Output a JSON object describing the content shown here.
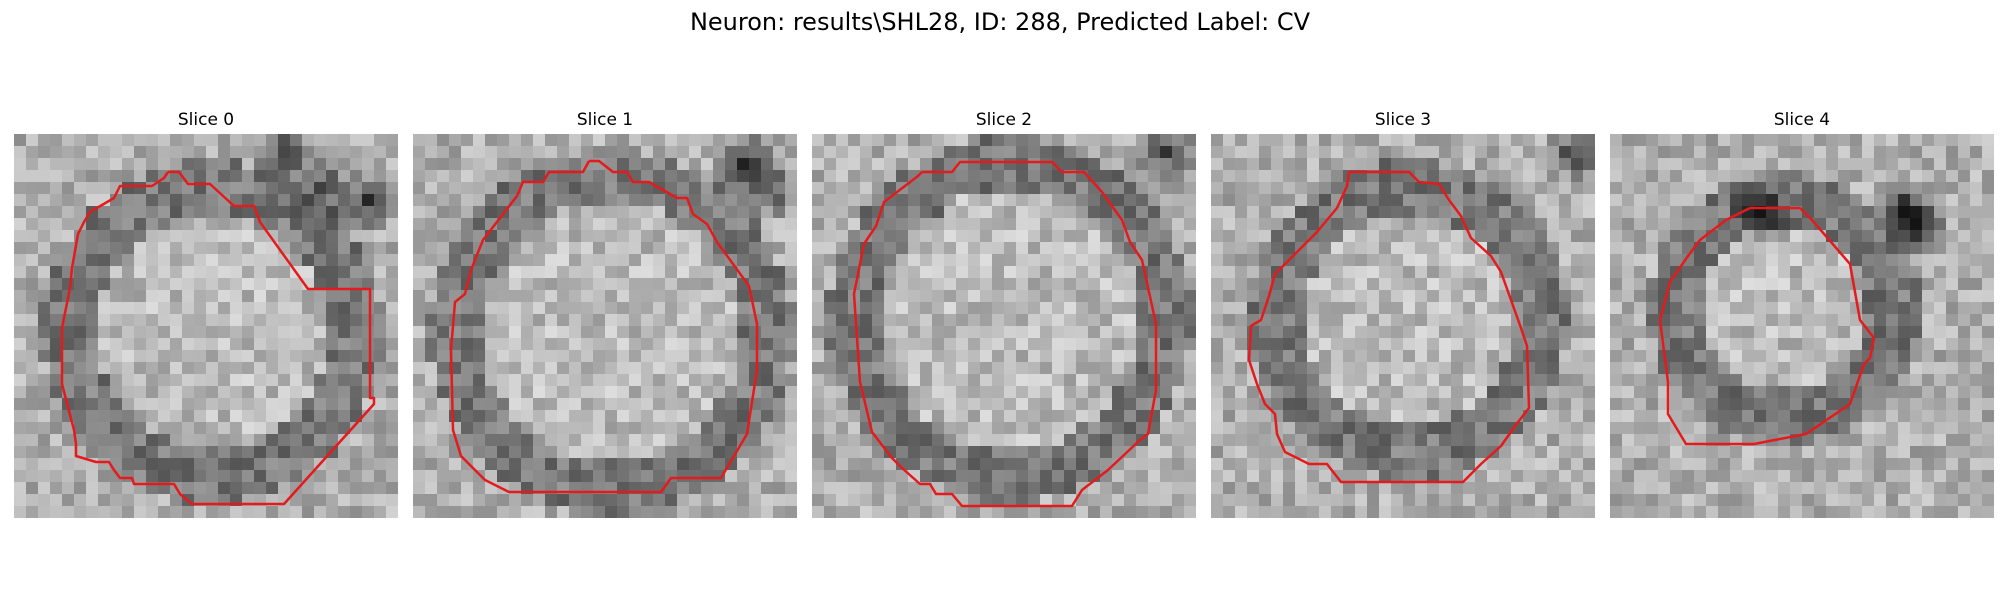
{
  "figure": {
    "title": "Neuron: results\\SHL28, ID: 288, Predicted Label: CV"
  },
  "panels": [
    {
      "title": "Slice 0"
    },
    {
      "title": "Slice 1"
    },
    {
      "title": "Slice 2"
    },
    {
      "title": "Slice 3"
    },
    {
      "title": "Slice 4"
    }
  ],
  "colors": {
    "contour": "#e41a1c",
    "background": "#ffffff"
  }
}
